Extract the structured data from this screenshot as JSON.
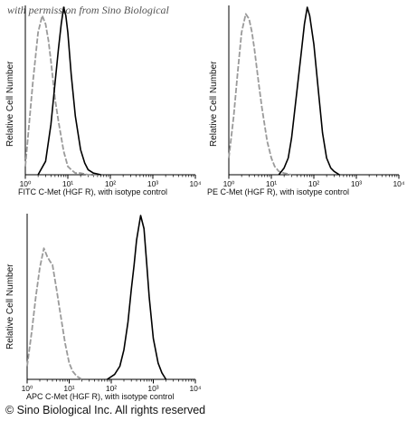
{
  "watermark": "with permission from Sino Biological",
  "footer": "© Sino Biological Inc. All rights reserved",
  "chart_data": [
    {
      "type": "line",
      "ylabel": "Relative Cell Number",
      "caption": "FITC  C-Met (HGF R),  with isotype control",
      "x_scale": "log",
      "xlim": [
        1,
        10000
      ],
      "x_tick_labels": [
        "10⁰",
        "10¹",
        "10²",
        "10³",
        "10⁴"
      ],
      "series": [
        {
          "style": "isotype",
          "color": "#9a9a9a",
          "dashed": true,
          "x": [
            1,
            1.5,
            2,
            2.5,
            3,
            3.5,
            4,
            5,
            6,
            8,
            10,
            12,
            15,
            20,
            30,
            50
          ],
          "y": [
            0.05,
            0.55,
            0.85,
            0.95,
            0.9,
            0.8,
            0.68,
            0.45,
            0.32,
            0.14,
            0.05,
            0.03,
            0.01,
            0.01,
            0,
            0
          ]
        },
        {
          "style": "sample",
          "color": "#000000",
          "dashed": false,
          "x": [
            2,
            3,
            4,
            5,
            6,
            7,
            8,
            9,
            10,
            12,
            15,
            20,
            25,
            30,
            40,
            60
          ],
          "y": [
            0,
            0.08,
            0.3,
            0.55,
            0.75,
            0.9,
            1.0,
            0.95,
            0.85,
            0.6,
            0.35,
            0.15,
            0.07,
            0.03,
            0.01,
            0
          ]
        }
      ]
    },
    {
      "type": "line",
      "ylabel": "Relative Cell Number",
      "caption": "PE  C-Met (HGF R),  with isotype control",
      "x_scale": "log",
      "xlim": [
        1,
        10000
      ],
      "x_tick_labels": [
        "10⁰",
        "10¹",
        "10²",
        "10³",
        "10⁴"
      ],
      "series": [
        {
          "style": "isotype",
          "color": "#9a9a9a",
          "dashed": true,
          "x": [
            1,
            1.3,
            1.6,
            2,
            2.5,
            3,
            3.5,
            4,
            5,
            6,
            8,
            10,
            12,
            15,
            20,
            30
          ],
          "y": [
            0.1,
            0.35,
            0.6,
            0.85,
            0.96,
            0.93,
            0.85,
            0.75,
            0.55,
            0.4,
            0.2,
            0.1,
            0.05,
            0.02,
            0.01,
            0
          ]
        },
        {
          "style": "sample",
          "color": "#000000",
          "dashed": false,
          "x": [
            15,
            20,
            25,
            30,
            40,
            50,
            60,
            70,
            80,
            100,
            130,
            160,
            200,
            250,
            300,
            400
          ],
          "y": [
            0,
            0.04,
            0.1,
            0.22,
            0.5,
            0.72,
            0.9,
            1.0,
            0.95,
            0.78,
            0.48,
            0.25,
            0.1,
            0.04,
            0.02,
            0
          ]
        }
      ]
    },
    {
      "type": "line",
      "ylabel": "Relative Cell Number",
      "caption": "APC C-Met (HGF R), with isotype control",
      "x_scale": "log",
      "xlim": [
        1,
        10000
      ],
      "x_tick_labels": [
        "10⁰",
        "10¹",
        "10²",
        "10³",
        "10⁴"
      ],
      "series": [
        {
          "style": "isotype",
          "color": "#9a9a9a",
          "dashed": true,
          "x": [
            1,
            1.3,
            1.6,
            2,
            2.5,
            3,
            3.5,
            4,
            5,
            6,
            8,
            10,
            12,
            15,
            20
          ],
          "y": [
            0.08,
            0.3,
            0.5,
            0.68,
            0.8,
            0.75,
            0.72,
            0.7,
            0.55,
            0.42,
            0.22,
            0.1,
            0.05,
            0.02,
            0
          ]
        },
        {
          "style": "sample",
          "color": "#000000",
          "dashed": false,
          "x": [
            80,
            120,
            160,
            200,
            250,
            300,
            350,
            400,
            500,
            600,
            700,
            800,
            1000,
            1300,
            1600,
            2000
          ],
          "y": [
            0,
            0.03,
            0.08,
            0.18,
            0.35,
            0.55,
            0.7,
            0.85,
            1.0,
            0.92,
            0.7,
            0.5,
            0.25,
            0.1,
            0.04,
            0
          ]
        }
      ]
    }
  ]
}
